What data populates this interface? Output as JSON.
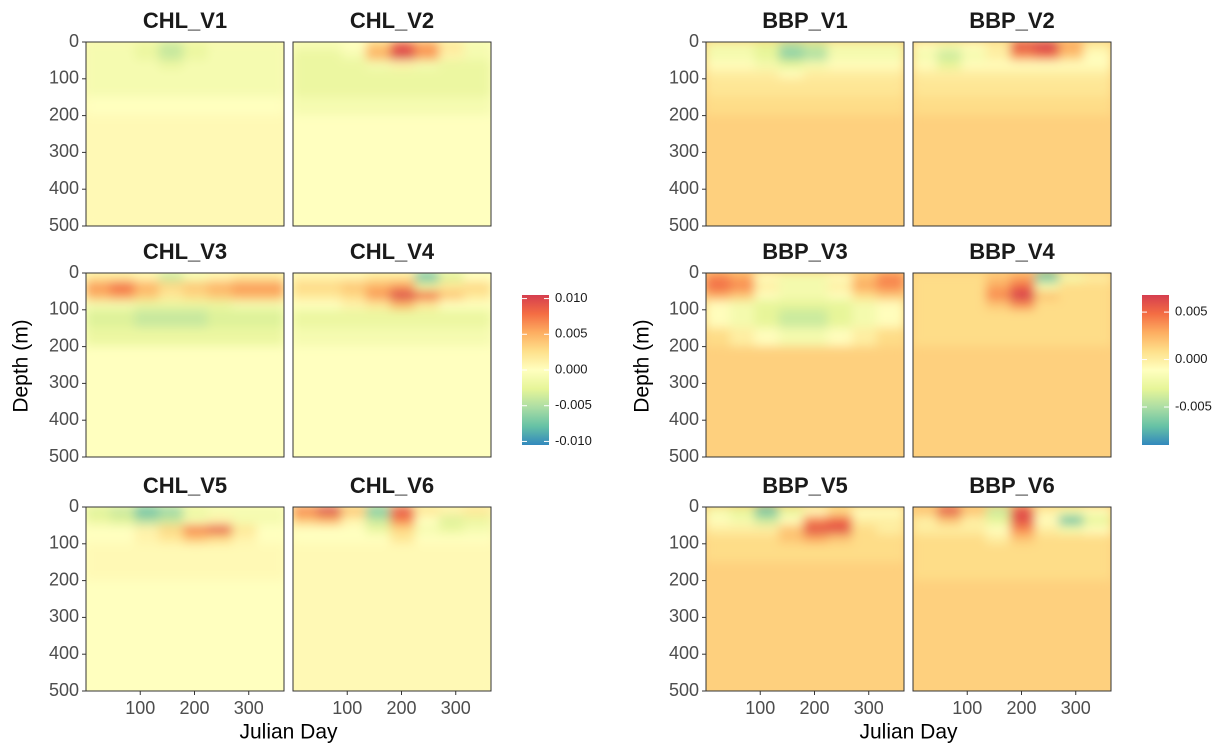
{
  "chart_data": [
    {
      "type": "heatmap",
      "xlabel": "Julian Day",
      "ylabel": "Depth (m)",
      "x_bins": [
        0,
        45,
        90,
        135,
        180,
        225,
        270,
        315,
        365
      ],
      "y_bins": [
        0,
        25,
        50,
        75,
        100,
        150,
        200,
        500
      ],
      "xlim": [
        0,
        365
      ],
      "ylim": [
        500,
        0
      ],
      "xticks": [
        100,
        200,
        300
      ],
      "yticks": [
        0,
        100,
        200,
        300,
        400,
        500
      ],
      "palette": [
        "#3288bd",
        "#66c2a5",
        "#abdda4",
        "#e6f598",
        "#ffffbf",
        "#fee08b",
        "#fdae61",
        "#f46d43",
        "#d53e4f"
      ],
      "clim": [
        -0.0105,
        0.0105
      ],
      "cticks": [
        {
          "value": 0.01,
          "label": "0.010"
        },
        {
          "value": 0.005,
          "label": "0.005"
        },
        {
          "value": 0,
          "label": "0.000"
        },
        {
          "value": -0.005,
          "label": "-0.005"
        },
        {
          "value": -0.01,
          "label": "-0.010"
        }
      ],
      "panels": [
        {
          "title": "CHL_V1",
          "values": [
            [
              -0.001,
              -0.001,
              -0.002,
              -0.004,
              -0.002,
              -0.001,
              -0.001,
              -0.001
            ],
            [
              -0.001,
              -0.001,
              -0.002,
              -0.004,
              -0.002,
              -0.001,
              -0.001,
              -0.001
            ],
            [
              -0.001,
              -0.001,
              -0.001,
              -0.002,
              -0.001,
              -0.001,
              -0.001,
              -0.001
            ],
            [
              -0.001,
              -0.001,
              -0.001,
              -0.001,
              -0.001,
              -0.001,
              -0.001,
              -0.001
            ],
            [
              -0.001,
              -0.001,
              -0.001,
              -0.001,
              -0.001,
              -0.001,
              -0.001,
              -0.001
            ],
            [
              0,
              0,
              0,
              0,
              0,
              0,
              0,
              0
            ],
            [
              0.0005,
              0.0005,
              0.0005,
              0.0005,
              0.0005,
              0.0005,
              0.0005,
              0.0005
            ]
          ]
        },
        {
          "title": "CHL_V2",
          "values": [
            [
              -0.001,
              -0.001,
              0,
              0.004,
              0.009,
              0.006,
              0.002,
              -0.001
            ],
            [
              -0.002,
              -0.002,
              -0.001,
              0.005,
              0.01,
              0.006,
              0.001,
              -0.001
            ],
            [
              -0.002,
              -0.002,
              -0.002,
              -0.001,
              0.001,
              -0.001,
              -0.002,
              -0.002
            ],
            [
              -0.002,
              -0.002,
              -0.002,
              -0.002,
              -0.002,
              -0.002,
              -0.002,
              -0.002
            ],
            [
              -0.002,
              -0.002,
              -0.002,
              -0.002,
              -0.002,
              -0.002,
              -0.002,
              -0.002
            ],
            [
              -0.001,
              -0.001,
              -0.001,
              -0.001,
              -0.001,
              -0.001,
              -0.001,
              -0.001
            ],
            [
              0,
              0,
              0,
              0,
              0,
              0,
              0,
              0
            ]
          ]
        },
        {
          "title": "CHL_V3",
          "values": [
            [
              0.002,
              0.002,
              0.001,
              -0.004,
              -0.001,
              0.001,
              0.002,
              0.002
            ],
            [
              0.006,
              0.008,
              0.005,
              0.003,
              0.004,
              0.005,
              0.006,
              0.006
            ],
            [
              0.005,
              0.006,
              0.004,
              0.002,
              0.003,
              0.004,
              0.005,
              0.005
            ],
            [
              -0.001,
              -0.001,
              -0.002,
              -0.002,
              -0.002,
              -0.002,
              -0.001,
              -0.001
            ],
            [
              -0.003,
              -0.003,
              -0.004,
              -0.004,
              -0.004,
              -0.003,
              -0.003,
              -0.003
            ],
            [
              -0.002,
              -0.002,
              -0.002,
              -0.002,
              -0.002,
              -0.002,
              -0.002,
              -0.002
            ],
            [
              0,
              0,
              0,
              0,
              0,
              0,
              0,
              0
            ]
          ]
        },
        {
          "title": "CHL_V4",
          "values": [
            [
              0.001,
              0.001,
              0.001,
              0.002,
              0.002,
              -0.008,
              -0.003,
              0
            ],
            [
              0.003,
              0.003,
              0.004,
              0.005,
              0.006,
              -0.002,
              0.002,
              0.003
            ],
            [
              0.002,
              0.002,
              0.003,
              0.006,
              0.01,
              0.008,
              0.004,
              0.002
            ],
            [
              0,
              0,
              0.001,
              0.002,
              0.005,
              0.002,
              0,
              0
            ],
            [
              -0.002,
              -0.002,
              -0.002,
              -0.002,
              -0.002,
              -0.002,
              -0.002,
              -0.002
            ],
            [
              -0.001,
              -0.001,
              -0.001,
              -0.001,
              -0.001,
              -0.001,
              -0.001,
              -0.001
            ],
            [
              0,
              0,
              0,
              0,
              0,
              0,
              0,
              0
            ]
          ]
        },
        {
          "title": "CHL_V5",
          "values": [
            [
              -0.003,
              -0.004,
              -0.008,
              -0.006,
              -0.002,
              -0.001,
              -0.001,
              -0.001
            ],
            [
              -0.002,
              -0.003,
              -0.005,
              -0.004,
              -0.001,
              0.001,
              -0.001,
              -0.001
            ],
            [
              0,
              0,
              0.001,
              0.003,
              0.007,
              0.009,
              0.002,
              0
            ],
            [
              0,
              0,
              0.001,
              0.002,
              0.004,
              0.003,
              0.001,
              0
            ],
            [
              0.0005,
              0.0005,
              0.0005,
              0.0005,
              0.0005,
              0.0005,
              0.0005,
              0.0005
            ],
            [
              0.0005,
              0.0005,
              0.0005,
              0.0005,
              0.0005,
              0.0005,
              0.0005,
              0.0005
            ],
            [
              0,
              0,
              0,
              0,
              0,
              0,
              0,
              0
            ]
          ]
        },
        {
          "title": "CHL_V6",
          "values": [
            [
              0.007,
              0.01,
              0.004,
              -0.007,
              0.009,
              0.002,
              0.001,
              0.002
            ],
            [
              0.004,
              0.005,
              0.001,
              -0.004,
              0.007,
              0,
              -0.003,
              -0.002
            ],
            [
              0,
              0,
              0,
              -0.002,
              0.003,
              -0.001,
              -0.002,
              -0.001
            ],
            [
              0,
              0,
              0,
              0,
              0.002,
              0,
              0,
              0
            ],
            [
              0.0005,
              0.0005,
              0.0005,
              0.0005,
              0.0005,
              0.0005,
              0.0005,
              0.0005
            ],
            [
              0.0005,
              0.0005,
              0.0005,
              0.0005,
              0.0005,
              0.0005,
              0.0005,
              0.0005
            ],
            [
              0.0005,
              0.0005,
              0.0005,
              0.0005,
              0.0005,
              0.0005,
              0.0005,
              0.0005
            ]
          ]
        }
      ]
    },
    {
      "type": "heatmap",
      "xlabel": "Julian Day",
      "ylabel": "Depth (m)",
      "x_bins": [
        0,
        45,
        90,
        135,
        180,
        225,
        270,
        315,
        365
      ],
      "y_bins": [
        0,
        25,
        50,
        75,
        100,
        150,
        200,
        500
      ],
      "xlim": [
        0,
        365
      ],
      "ylim": [
        500,
        0
      ],
      "xticks": [
        100,
        200,
        300
      ],
      "yticks": [
        0,
        100,
        200,
        300,
        400,
        500
      ],
      "palette": [
        "#3288bd",
        "#66c2a5",
        "#abdda4",
        "#e6f598",
        "#ffffbf",
        "#fee08b",
        "#fdae61",
        "#f46d43",
        "#d53e4f"
      ],
      "clim": [
        -0.009,
        0.0068
      ],
      "cticks": [
        {
          "value": 0.005,
          "label": "0.005"
        },
        {
          "value": 0,
          "label": "0.000"
        },
        {
          "value": -0.005,
          "label": "-0.005"
        }
      ],
      "panels": [
        {
          "title": "BBP_V1",
          "values": [
            [
              -0.002,
              -0.002,
              -0.003,
              -0.005,
              -0.004,
              -0.002,
              -0.002,
              -0.002
            ],
            [
              -0.002,
              -0.002,
              -0.003,
              -0.006,
              -0.005,
              -0.002,
              -0.002,
              -0.002
            ],
            [
              -0.001,
              -0.001,
              -0.002,
              -0.003,
              -0.002,
              -0.001,
              -0.001,
              -0.001
            ],
            [
              0,
              0,
              0,
              -0.001,
              0,
              0,
              0,
              0
            ],
            [
              0.0005,
              0.0005,
              0.0005,
              0.0005,
              0.0005,
              0.0005,
              0.0005,
              0.0005
            ],
            [
              0.001,
              0.001,
              0.001,
              0.001,
              0.001,
              0.001,
              0.001,
              0.001
            ],
            [
              0.0015,
              0.0015,
              0.0015,
              0.0015,
              0.0015,
              0.0015,
              0.0015,
              0.0015
            ]
          ]
        },
        {
          "title": "BBP_V2",
          "values": [
            [
              -0.001,
              -0.002,
              -0.001,
              0,
              0.006,
              0.007,
              0.003,
              0
            ],
            [
              -0.002,
              -0.004,
              -0.002,
              0,
              0.004,
              0.005,
              0.002,
              -0.001
            ],
            [
              -0.001,
              -0.003,
              -0.001,
              -0.001,
              -0.001,
              -0.001,
              -0.001,
              -0.001
            ],
            [
              0,
              0,
              0,
              0,
              0,
              0,
              0,
              0
            ],
            [
              0.0005,
              0.0005,
              0.0005,
              0.0005,
              0.0005,
              0.0005,
              0.0005,
              0.0005
            ],
            [
              0.001,
              0.001,
              0.001,
              0.001,
              0.001,
              0.001,
              0.001,
              0.001
            ],
            [
              0.0015,
              0.0015,
              0.0015,
              0.0015,
              0.0015,
              0.0015,
              0.0015,
              0.0015
            ]
          ]
        },
        {
          "title": "BBP_V3",
          "values": [
            [
              0.004,
              0.003,
              -0.001,
              -0.002,
              -0.002,
              -0.001,
              0.002,
              0.004
            ],
            [
              0.005,
              0.004,
              0,
              -0.002,
              -0.002,
              0,
              0.003,
              0.004
            ],
            [
              0.003,
              0.002,
              -0.001,
              -0.002,
              -0.002,
              -0.001,
              0.001,
              0.002
            ],
            [
              -0.001,
              -0.002,
              -0.003,
              -0.003,
              -0.003,
              -0.003,
              -0.002,
              -0.001
            ],
            [
              -0.001,
              -0.002,
              -0.003,
              -0.004,
              -0.004,
              -0.003,
              -0.002,
              -0.001
            ],
            [
              0.001,
              0,
              -0.001,
              -0.002,
              -0.002,
              -0.001,
              0,
              0.001
            ],
            [
              0.0015,
              0.0015,
              0.0015,
              0.0015,
              0.0015,
              0.0015,
              0.0015,
              0.0015
            ]
          ]
        },
        {
          "title": "BBP_V4",
          "values": [
            [
              0.001,
              0.001,
              0.001,
              0.002,
              0.003,
              -0.007,
              -0.002,
              0
            ],
            [
              0.001,
              0.001,
              0.001,
              0.003,
              0.005,
              -0.002,
              0.001,
              0.001
            ],
            [
              0.001,
              0.001,
              0.001,
              0.004,
              0.007,
              0.002,
              0.001,
              0.001
            ],
            [
              0.001,
              0.001,
              0.001,
              0.002,
              0.004,
              0.001,
              0.001,
              0.001
            ],
            [
              0.001,
              0.001,
              0.001,
              0.001,
              0.001,
              0.001,
              0.001,
              0.001
            ],
            [
              0.001,
              0.001,
              0.001,
              0.001,
              0.001,
              0.001,
              0.001,
              0.001
            ],
            [
              0.0015,
              0.0015,
              0.0015,
              0.0015,
              0.0015,
              0.0015,
              0.0015,
              0.0015
            ]
          ]
        },
        {
          "title": "BBP_V5",
          "values": [
            [
              -0.002,
              -0.003,
              -0.007,
              -0.003,
              -0.001,
              0.001,
              -0.001,
              -0.001
            ],
            [
              -0.001,
              -0.002,
              -0.004,
              -0.001,
              0.004,
              0.005,
              0,
              0
            ],
            [
              0,
              0,
              0,
              0.002,
              0.006,
              0.006,
              0.001,
              0
            ],
            [
              0.001,
              0.001,
              0.001,
              0.002,
              0.003,
              0.002,
              0.001,
              0.001
            ],
            [
              0.001,
              0.001,
              0.001,
              0.001,
              0.001,
              0.001,
              0.001,
              0.001
            ],
            [
              0.0015,
              0.0015,
              0.0015,
              0.0015,
              0.0015,
              0.0015,
              0.0015,
              0.0015
            ],
            [
              0.0015,
              0.0015,
              0.0015,
              0.0015,
              0.0015,
              0.0015,
              0.0015,
              0.0015
            ]
          ]
        },
        {
          "title": "BBP_V6",
          "values": [
            [
              0.002,
              0.006,
              0.002,
              -0.004,
              0.006,
              0,
              -0.002,
              -0.001
            ],
            [
              0,
              0.002,
              0,
              -0.003,
              0.006,
              -0.001,
              -0.007,
              -0.003
            ],
            [
              0,
              0,
              0,
              -0.001,
              0.004,
              0,
              -0.002,
              -0.001
            ],
            [
              0.001,
              0.001,
              0.001,
              0,
              0.002,
              0.001,
              0.001,
              0.001
            ],
            [
              0.001,
              0.001,
              0.001,
              0.001,
              0.001,
              0.001,
              0.001,
              0.001
            ],
            [
              0.001,
              0.001,
              0.001,
              0.001,
              0.001,
              0.001,
              0.001,
              0.001
            ],
            [
              0.0015,
              0.0015,
              0.0015,
              0.0015,
              0.0015,
              0.0015,
              0.0015,
              0.0015
            ]
          ]
        }
      ]
    }
  ]
}
